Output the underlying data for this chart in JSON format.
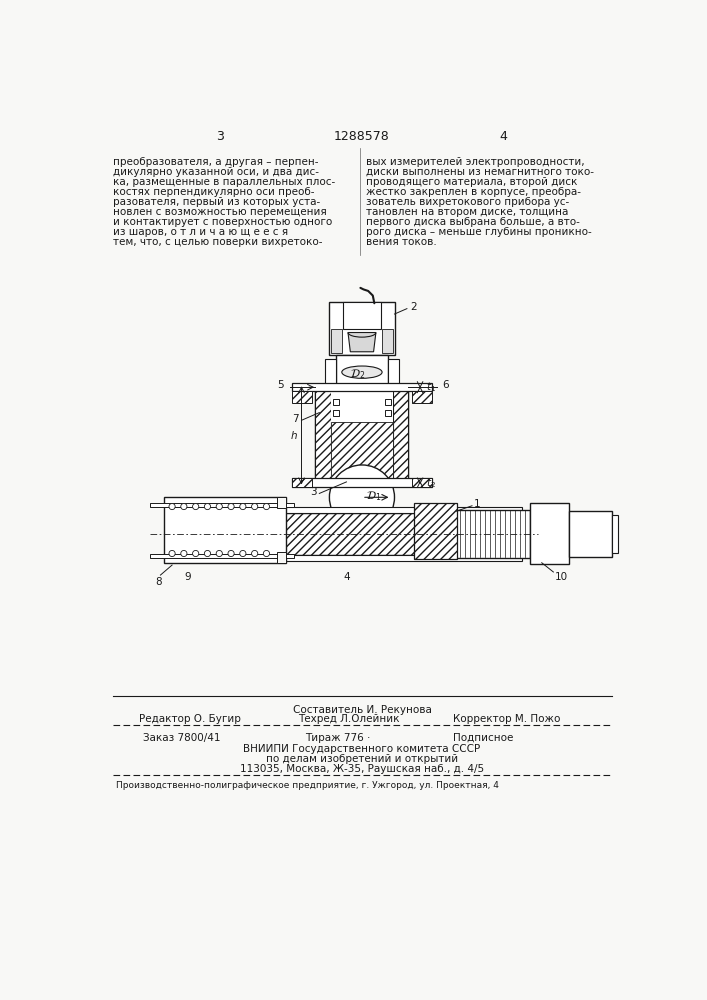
{
  "page_color": "#f8f8f6",
  "text_color": "#1a1a1a",
  "page_num_left": "3",
  "page_num_center": "1288578",
  "page_num_right": "4",
  "left_text_lines": [
    "преобразователя, а другая – перпен-",
    "дикулярно указанной оси, и два дис-",
    "ка, размещенные в параллельных плос-",
    "костях перпендикулярно оси преоб-",
    "разователя, первый из которых уста-",
    "новлен с возможностью перемещения",
    "и контактирует с поверхностью одного",
    "из шаров, о т л и ч а ю щ е е с я",
    "тем, что, с целью поверки вихретоко-"
  ],
  "right_text_lines": [
    "вых измерителей электропроводности,",
    "диски выполнены из немагнитного токо-",
    "проводящего материала, второй диск",
    "жестко закреплен в корпусе, преобра-",
    "зователь вихретокового прибора ус-",
    "тановлен на втором диске, толщина",
    "первого диска выбрана больше, а вто-",
    "рого диска – меньше глубины проникно-",
    "вения токов."
  ],
  "footer_line1_center": "Составитель И. Рекунова",
  "footer_line2_left": "Редактор О. Бугир",
  "footer_line2_center": "Техред Л.Олейник",
  "footer_line2_right": "Корректор М. Пожо",
  "footer_order": "Заказ 7800/41",
  "footer_tirazh": "Тираж 776 ·",
  "footer_podpisnoe": "Подписное",
  "footer_vniip": "ВНИИПИ Государственного комитета СССР",
  "footer_po_delam": "по делам изобретений и открытий",
  "footer_address": "113035, Москва, Ж-35, Раушская наб., д. 4/5",
  "footer_print": "Производственно-полиграфическое предприятие, г. Ужгород, ул. Проектная, 4"
}
